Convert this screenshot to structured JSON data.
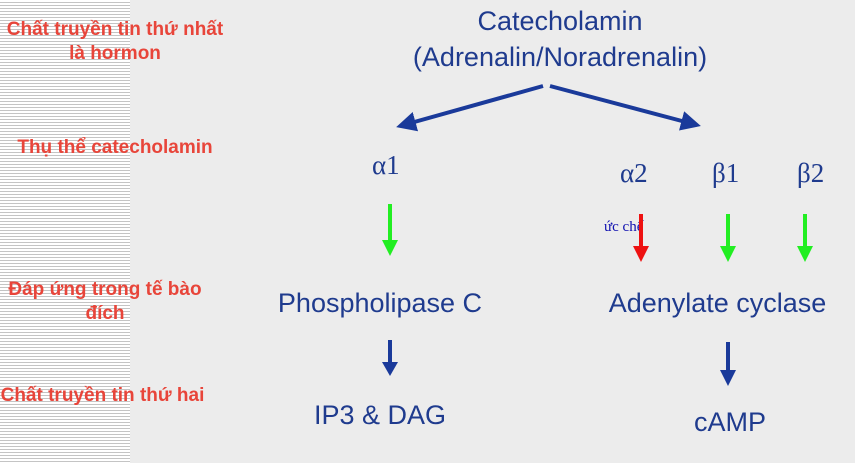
{
  "sidebar": {
    "labels": {
      "first_messenger": "Chất truyền tin thứ nhất là hormon",
      "receptor": "Thụ thể catecholamin",
      "cell_response": "Đáp ứng trong tế bào đích",
      "second_messenger": "Chất truyền tin thứ hai"
    }
  },
  "diagram": {
    "hormone": {
      "name": "Catecholamin",
      "examples": "(Adrenalin/Noradrenalin)"
    },
    "receptors": {
      "alpha1": "α1",
      "alpha2": "α2",
      "beta1": "β1",
      "beta2": "β2"
    },
    "inhibition_note": "ức chế",
    "enzymes": {
      "phospholipase": "Phospholipase C",
      "adenylate": "Adenylate cyclase"
    },
    "second_messengers": {
      "ip3_dag": "IP3 & DAG",
      "camp": "cAMP"
    },
    "colors": {
      "label_red": "#e8453a",
      "text_blue": "#1f3b8e",
      "arrow_blue": "#1a3a9a",
      "activate_green": "#22ee22",
      "inhibit_red": "#ee1111"
    }
  }
}
